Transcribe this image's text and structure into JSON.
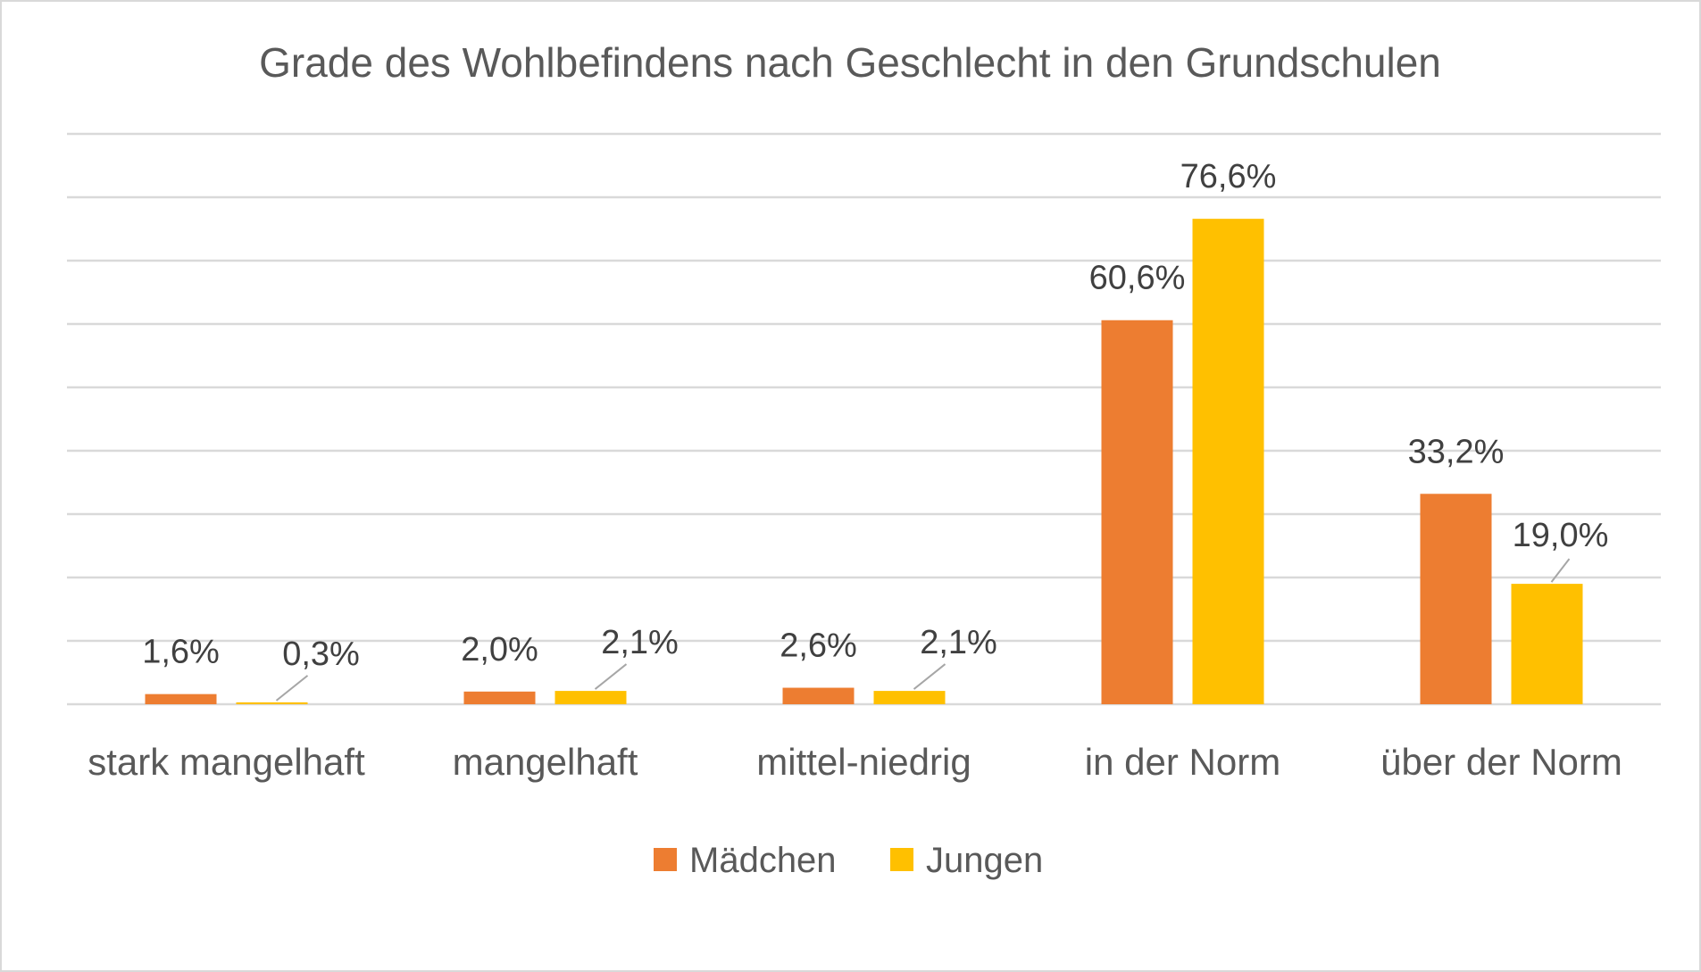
{
  "chart_data": {
    "type": "bar",
    "title": "Grade des Wohlbefindens nach Geschlecht in den Grundschulen",
    "categories": [
      "stark mangelhaft",
      "mangelhaft",
      "mittel-niedrig",
      "in der Norm",
      "über der Norm"
    ],
    "series": [
      {
        "name": "Mädchen",
        "color": "#ED7D31",
        "values": [
          1.6,
          2.0,
          2.6,
          60.6,
          33.2
        ],
        "labels": [
          "1,6%",
          "2,0%",
          "2,6%",
          "60,6%",
          "33,2%"
        ]
      },
      {
        "name": "Jungen",
        "color": "#FFC000",
        "values": [
          0.3,
          2.1,
          2.1,
          76.6,
          19.0
        ],
        "labels": [
          "0,3%",
          "2,1%",
          "2,1%",
          "76,6%",
          "19,0%"
        ]
      }
    ],
    "ylim": [
      0,
      90
    ],
    "ytick_step": 10,
    "y_axis_labels_shown": false,
    "grid": true,
    "legend": "bottom",
    "xlabel": "",
    "ylabel": ""
  }
}
